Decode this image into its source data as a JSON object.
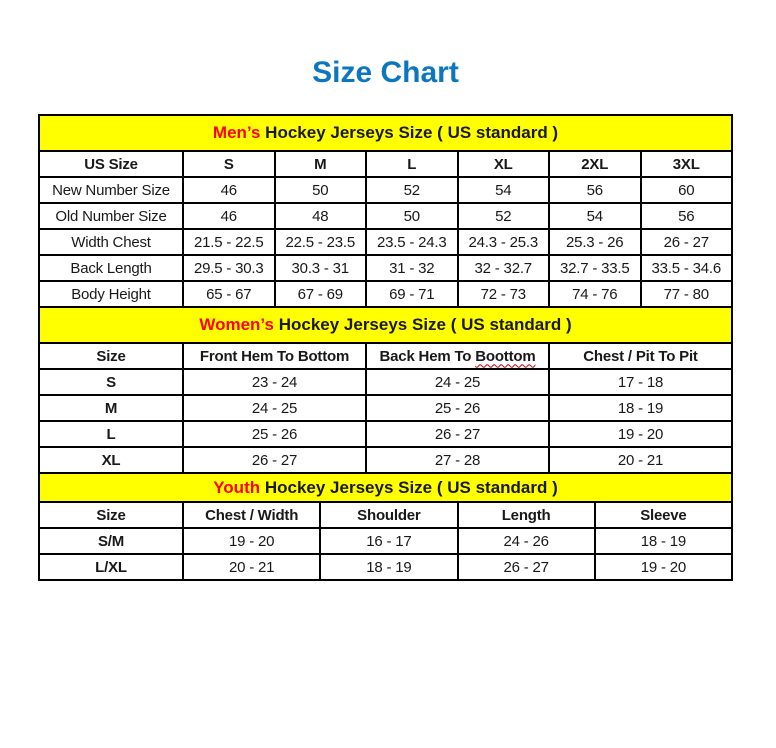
{
  "page": {
    "title": "Size Chart"
  },
  "colors": {
    "accent_blue": "#0d76c1",
    "header_yellow": "#ffff00",
    "highlight_red": "#ff0000",
    "border_black": "#000000"
  },
  "tables": [
    {
      "name": "mens",
      "header_highlight": "Men’s",
      "header_rest": " Hockey Jerseys Size ( US standard )",
      "columns": [
        "US Size",
        "S",
        "M",
        "L",
        "XL",
        "2XL",
        "3XL"
      ],
      "rows": [
        {
          "label": "New Number Size",
          "values": [
            "46",
            "50",
            "52",
            "54",
            "56",
            "60"
          ]
        },
        {
          "label": "Old Number Size",
          "values": [
            "46",
            "48",
            "50",
            "52",
            "54",
            "56"
          ]
        },
        {
          "label": "Width Chest",
          "values": [
            "21.5 - 22.5",
            "22.5 - 23.5",
            "23.5 - 24.3",
            "24.3 - 25.3",
            "25.3 - 26",
            "26 - 27"
          ]
        },
        {
          "label": "Back Length",
          "values": [
            "29.5 - 30.3",
            "30.3 - 31",
            "31 - 32",
            "32 - 32.7",
            "32.7 - 33.5",
            "33.5 - 34.6"
          ]
        },
        {
          "label": "Body Height",
          "values": [
            "65 - 67",
            "67 - 69",
            "69 - 71",
            "72 - 73",
            "74 - 76",
            "77 - 80"
          ]
        }
      ]
    },
    {
      "name": "womens",
      "header_highlight": "Women’s",
      "header_rest": " Hockey Jerseys Size ( US standard )",
      "columns": [
        "Size",
        "Front Hem To Bottom",
        "Back Hem To",
        "Chest / Pit To Pit"
      ],
      "misspelled_word": "Boottom",
      "rows": [
        {
          "label": "S",
          "values": [
            "23 - 24",
            "24 - 25",
            "17 - 18"
          ]
        },
        {
          "label": "M",
          "values": [
            "24 - 25",
            "25 - 26",
            "18 - 19"
          ]
        },
        {
          "label": "L",
          "values": [
            "25 - 26",
            "26 - 27",
            "19 - 20"
          ]
        },
        {
          "label": "XL",
          "values": [
            "26 - 27",
            "27 - 28",
            "20 - 21"
          ]
        }
      ]
    },
    {
      "name": "youth",
      "header_highlight": "Youth",
      "header_rest": " Hockey Jerseys Size ( US standard )",
      "columns": [
        "Size",
        "Chest / Width",
        "Shoulder",
        "Length",
        "Sleeve"
      ],
      "rows": [
        {
          "label": "S/M",
          "values": [
            "19 - 20",
            "16 - 17",
            "24 - 26",
            "18 - 19"
          ]
        },
        {
          "label": "L/XL",
          "values": [
            "20 - 21",
            "18 - 19",
            "26 - 27",
            "19 - 20"
          ]
        }
      ]
    }
  ]
}
